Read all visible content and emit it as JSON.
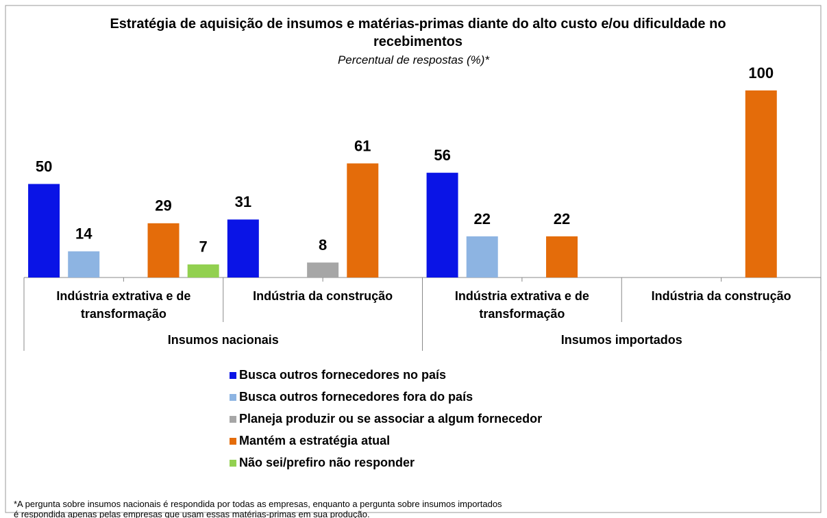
{
  "chart_data": {
    "type": "bar",
    "title": "Estratégia de aquisição de insumos e matérias-primas diante do alto custo e/ou dificuldade no recebimentos",
    "subtitle": "Percentual de respostas (%)*",
    "categories": [
      "Indústria extrativa e de transformação",
      "Indústria da construção",
      "Indústria extrativa e de transformação",
      "Indústria da construção"
    ],
    "groups": [
      "Insumos nacionais",
      "Insumos importados"
    ],
    "series": [
      {
        "name": "Busca outros fornecedores no país",
        "color": "#0a14e6",
        "values": [
          50,
          31,
          56,
          null
        ]
      },
      {
        "name": "Busca outros fornecedores fora do país",
        "color": "#8db4e2",
        "values": [
          14,
          null,
          22,
          null
        ]
      },
      {
        "name": "Planeja produzir ou se associar a algum fornecedor",
        "color": "#a6a6a6",
        "values": [
          null,
          8,
          null,
          null
        ]
      },
      {
        "name": "Mantém a estratégia atual",
        "color": "#e46c0a",
        "values": [
          29,
          61,
          22,
          100
        ]
      },
      {
        "name": "Não sei/prefiro não responder",
        "color": "#92d050",
        "values": [
          7,
          null,
          null,
          null
        ]
      }
    ],
    "footnote": "*A pergunta sobre insumos nacionais é respondida por todas as empresas, enquanto a pergunta sobre insumos importados é respondida apenas pelas empresas que usam essas matérias-primas em sua produção."
  }
}
